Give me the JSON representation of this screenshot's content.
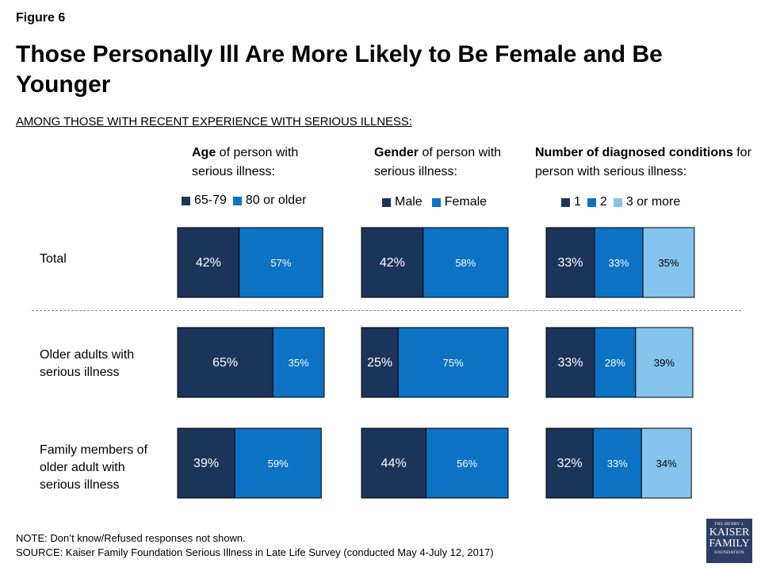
{
  "figure_label": "Figure 6",
  "title": "Those Personally Ill Are More Likely to Be Female and Be Younger",
  "subtitle": "AMONG THOSE WITH RECENT EXPERIENCE WITH SERIOUS ILLNESS:",
  "columns": [
    {
      "head_bold": "Age",
      "head_rest": " of person with serious illness:"
    },
    {
      "head_bold": "Gender",
      "head_rest": " of person with serious illness:"
    },
    {
      "head_bold": "Number of diagnosed conditions",
      "head_rest": " for person with serious illness:"
    }
  ],
  "legends": [
    [
      {
        "label": "65-79",
        "color": "#1b3459"
      },
      {
        "label": "80 or older",
        "color": "#0b72c4"
      }
    ],
    [
      {
        "label": "Male",
        "color": "#1b3459"
      },
      {
        "label": "Female",
        "color": "#0b72c4"
      }
    ],
    [
      {
        "label": "1",
        "color": "#1b3459"
      },
      {
        "label": "2",
        "color": "#0b72c4"
      },
      {
        "label": "3 or more",
        "color": "#85c5ed"
      }
    ]
  ],
  "row_labels": [
    [
      "Total"
    ],
    [
      "Older adults with",
      "serious illness"
    ],
    [
      "Family members of",
      "older adult with",
      "serious illness"
    ]
  ],
  "chart_data": [
    {
      "type": "bar",
      "orientation": "horizontal-stacked",
      "categories": [
        "Total",
        "Older adults with serious illness",
        "Family members of older adult with serious illness"
      ],
      "series": [
        {
          "name": "65-79",
          "values": [
            42,
            65,
            39
          ],
          "labels": [
            "42%",
            "65%",
            "39%"
          ],
          "color": "#1b3459"
        },
        {
          "name": "80 or older",
          "values": [
            57,
            35,
            59
          ],
          "labels": [
            "57%",
            "35%",
            "59%"
          ],
          "color": "#0b72c4"
        }
      ]
    },
    {
      "type": "bar",
      "orientation": "horizontal-stacked",
      "categories": [
        "Total",
        "Older adults with serious illness",
        "Family members of older adult with serious illness"
      ],
      "series": [
        {
          "name": "Male",
          "values": [
            42,
            25,
            44
          ],
          "labels": [
            "42%",
            "25%",
            "44%"
          ],
          "color": "#1b3459"
        },
        {
          "name": "Female",
          "values": [
            58,
            75,
            56
          ],
          "labels": [
            "58%",
            "75%",
            "56%"
          ],
          "color": "#0b72c4"
        }
      ]
    },
    {
      "type": "bar",
      "orientation": "horizontal-stacked",
      "categories": [
        "Total",
        "Older adults with serious illness",
        "Family members of older adult with serious illness"
      ],
      "series": [
        {
          "name": "1",
          "values": [
            33,
            33,
            32
          ],
          "labels": [
            "33%",
            "33%",
            "32%"
          ],
          "color": "#1b3459"
        },
        {
          "name": "2",
          "values": [
            33,
            28,
            33
          ],
          "labels": [
            "33%",
            "28%",
            "33%"
          ],
          "color": "#0b72c4"
        },
        {
          "name": "3 or more",
          "values": [
            35,
            39,
            34
          ],
          "labels": [
            "35%",
            "39%",
            "34%"
          ],
          "color": "#85c5ed"
        }
      ]
    }
  ],
  "note": "NOTE: Don’t know/Refused responses not shown.",
  "source": "SOURCE: Kaiser Family Foundation Serious Illness in Late Life Survey (conducted May 4-July 12, 2017)",
  "logo": {
    "line1": "THE HENRY J.",
    "line2": "KAISER",
    "line3": "FAMILY",
    "line4": "FOUNDATION"
  }
}
